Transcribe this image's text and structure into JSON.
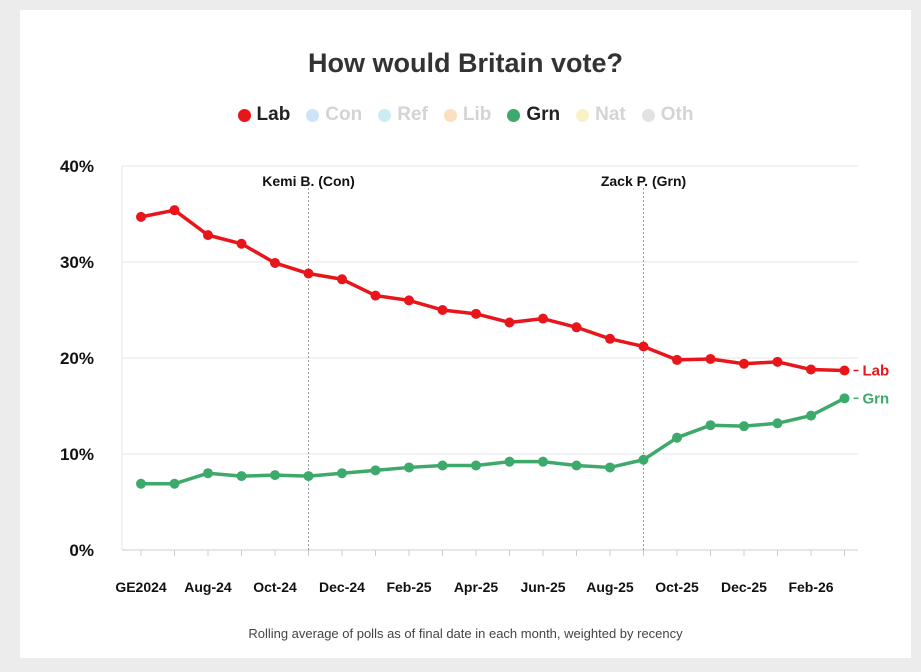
{
  "chart_data": {
    "type": "line",
    "title": "How would Britain vote?",
    "footnote": "Rolling average of polls as of final date in each month, weighted by recency",
    "legend": [
      {
        "label": "Lab",
        "color": "#e8161b",
        "active": true
      },
      {
        "label": "Con",
        "color": "#cfe3f7",
        "active": false
      },
      {
        "label": "Ref",
        "color": "#cdeaf5",
        "active": false
      },
      {
        "label": "Lib",
        "color": "#fbdfc0",
        "active": false
      },
      {
        "label": "Grn",
        "color": "#3daa6c",
        "active": true
      },
      {
        "label": "Nat",
        "color": "#fbf1c8",
        "active": false
      },
      {
        "label": "Oth",
        "color": "#e2e2e2",
        "active": false
      }
    ],
    "inactive_text_color": "#d4d4d4",
    "ylim": [
      0,
      40
    ],
    "yticks": [
      0,
      10,
      20,
      30,
      40
    ],
    "ytick_labels": [
      "0%",
      "10%",
      "20%",
      "30%",
      "40%"
    ],
    "x_labels": [
      "GE2024",
      "Aug-24",
      "Oct-24",
      "Dec-24",
      "Feb-25",
      "Apr-25",
      "Jun-25",
      "Aug-25",
      "Oct-25",
      "Dec-25",
      "Feb-26"
    ],
    "x_label_indices": [
      0,
      2,
      4,
      6,
      8,
      10,
      12,
      14,
      16,
      18,
      20
    ],
    "n_points": 22,
    "series": [
      {
        "name": "Lab",
        "end_label": "Lab",
        "color": "#e8161b",
        "values": [
          34.7,
          35.4,
          32.8,
          31.9,
          29.9,
          28.8,
          28.2,
          26.5,
          26.0,
          25.0,
          24.6,
          23.7,
          24.1,
          23.2,
          22.0,
          21.2,
          19.8,
          19.9,
          19.4,
          19.6,
          18.8,
          18.7
        ]
      },
      {
        "name": "Grn",
        "end_label": "Grn",
        "color": "#3daa6c",
        "values": [
          6.9,
          6.9,
          8.0,
          7.7,
          7.8,
          7.7,
          8.0,
          8.3,
          8.6,
          8.8,
          8.8,
          9.2,
          9.2,
          8.8,
          8.6,
          9.4,
          11.7,
          13.0,
          12.9,
          13.2,
          14.0,
          15.8
        ]
      }
    ],
    "annotations": [
      {
        "label": "Kemi B. (Con)",
        "index": 5
      },
      {
        "label": "Zack P. (Grn)",
        "index": 15
      }
    ]
  }
}
